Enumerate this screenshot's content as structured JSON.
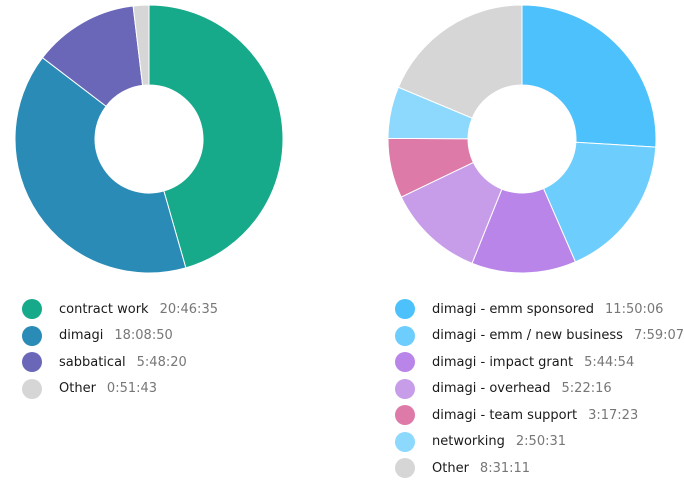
{
  "charts": [
    {
      "id": "left",
      "items": [
        {
          "name": "contract work",
          "value": "20:46:35",
          "color": "#16a98a"
        },
        {
          "name": "dimagi",
          "value": "18:08:50",
          "color": "#2a8bb6"
        },
        {
          "name": "sabbatical",
          "value": "5:48:20",
          "color": "#6a67b9"
        },
        {
          "name": "Other",
          "value": "0:51:43",
          "color": "#d6d6d6"
        }
      ]
    },
    {
      "id": "right",
      "items": [
        {
          "name": "dimagi - emm sponsored",
          "value": "11:50:06",
          "color": "#4dc1fb"
        },
        {
          "name": "dimagi - emm / new business",
          "value": "7:59:07",
          "color": "#6dcdfc"
        },
        {
          "name": "dimagi - impact grant",
          "value": "5:44:54",
          "color": "#b985e8"
        },
        {
          "name": "dimagi - overhead",
          "value": "5:22:16",
          "color": "#c79ce9"
        },
        {
          "name": "dimagi - team support",
          "value": "3:17:23",
          "color": "#dd7aa8"
        },
        {
          "name": "networking",
          "value": "2:50:31",
          "color": "#8dd8fd"
        },
        {
          "name": "Other",
          "value": "8:31:11",
          "color": "#d6d6d6"
        }
      ]
    }
  ],
  "chart_data": [
    {
      "type": "pie",
      "labels": [
        "contract work",
        "dimagi",
        "sabbatical",
        "Other"
      ],
      "values": [
        20.776,
        18.147,
        5.806,
        0.862
      ],
      "display_values": [
        "20:46:35",
        "18:08:50",
        "5:48:20",
        "0:51:43"
      ],
      "donut": true,
      "legend": "bottom"
    },
    {
      "type": "pie",
      "labels": [
        "dimagi - emm sponsored",
        "dimagi - emm / new business",
        "dimagi - impact grant",
        "dimagi - overhead",
        "dimagi - team support",
        "networking",
        "Other"
      ],
      "values": [
        11.835,
        7.985,
        5.748,
        5.371,
        3.29,
        2.842,
        8.52
      ],
      "display_values": [
        "11:50:06",
        "7:59:07",
        "5:44:54",
        "5:22:16",
        "3:17:23",
        "2:50:31",
        "8:31:11"
      ],
      "donut": true,
      "legend": "bottom"
    }
  ]
}
